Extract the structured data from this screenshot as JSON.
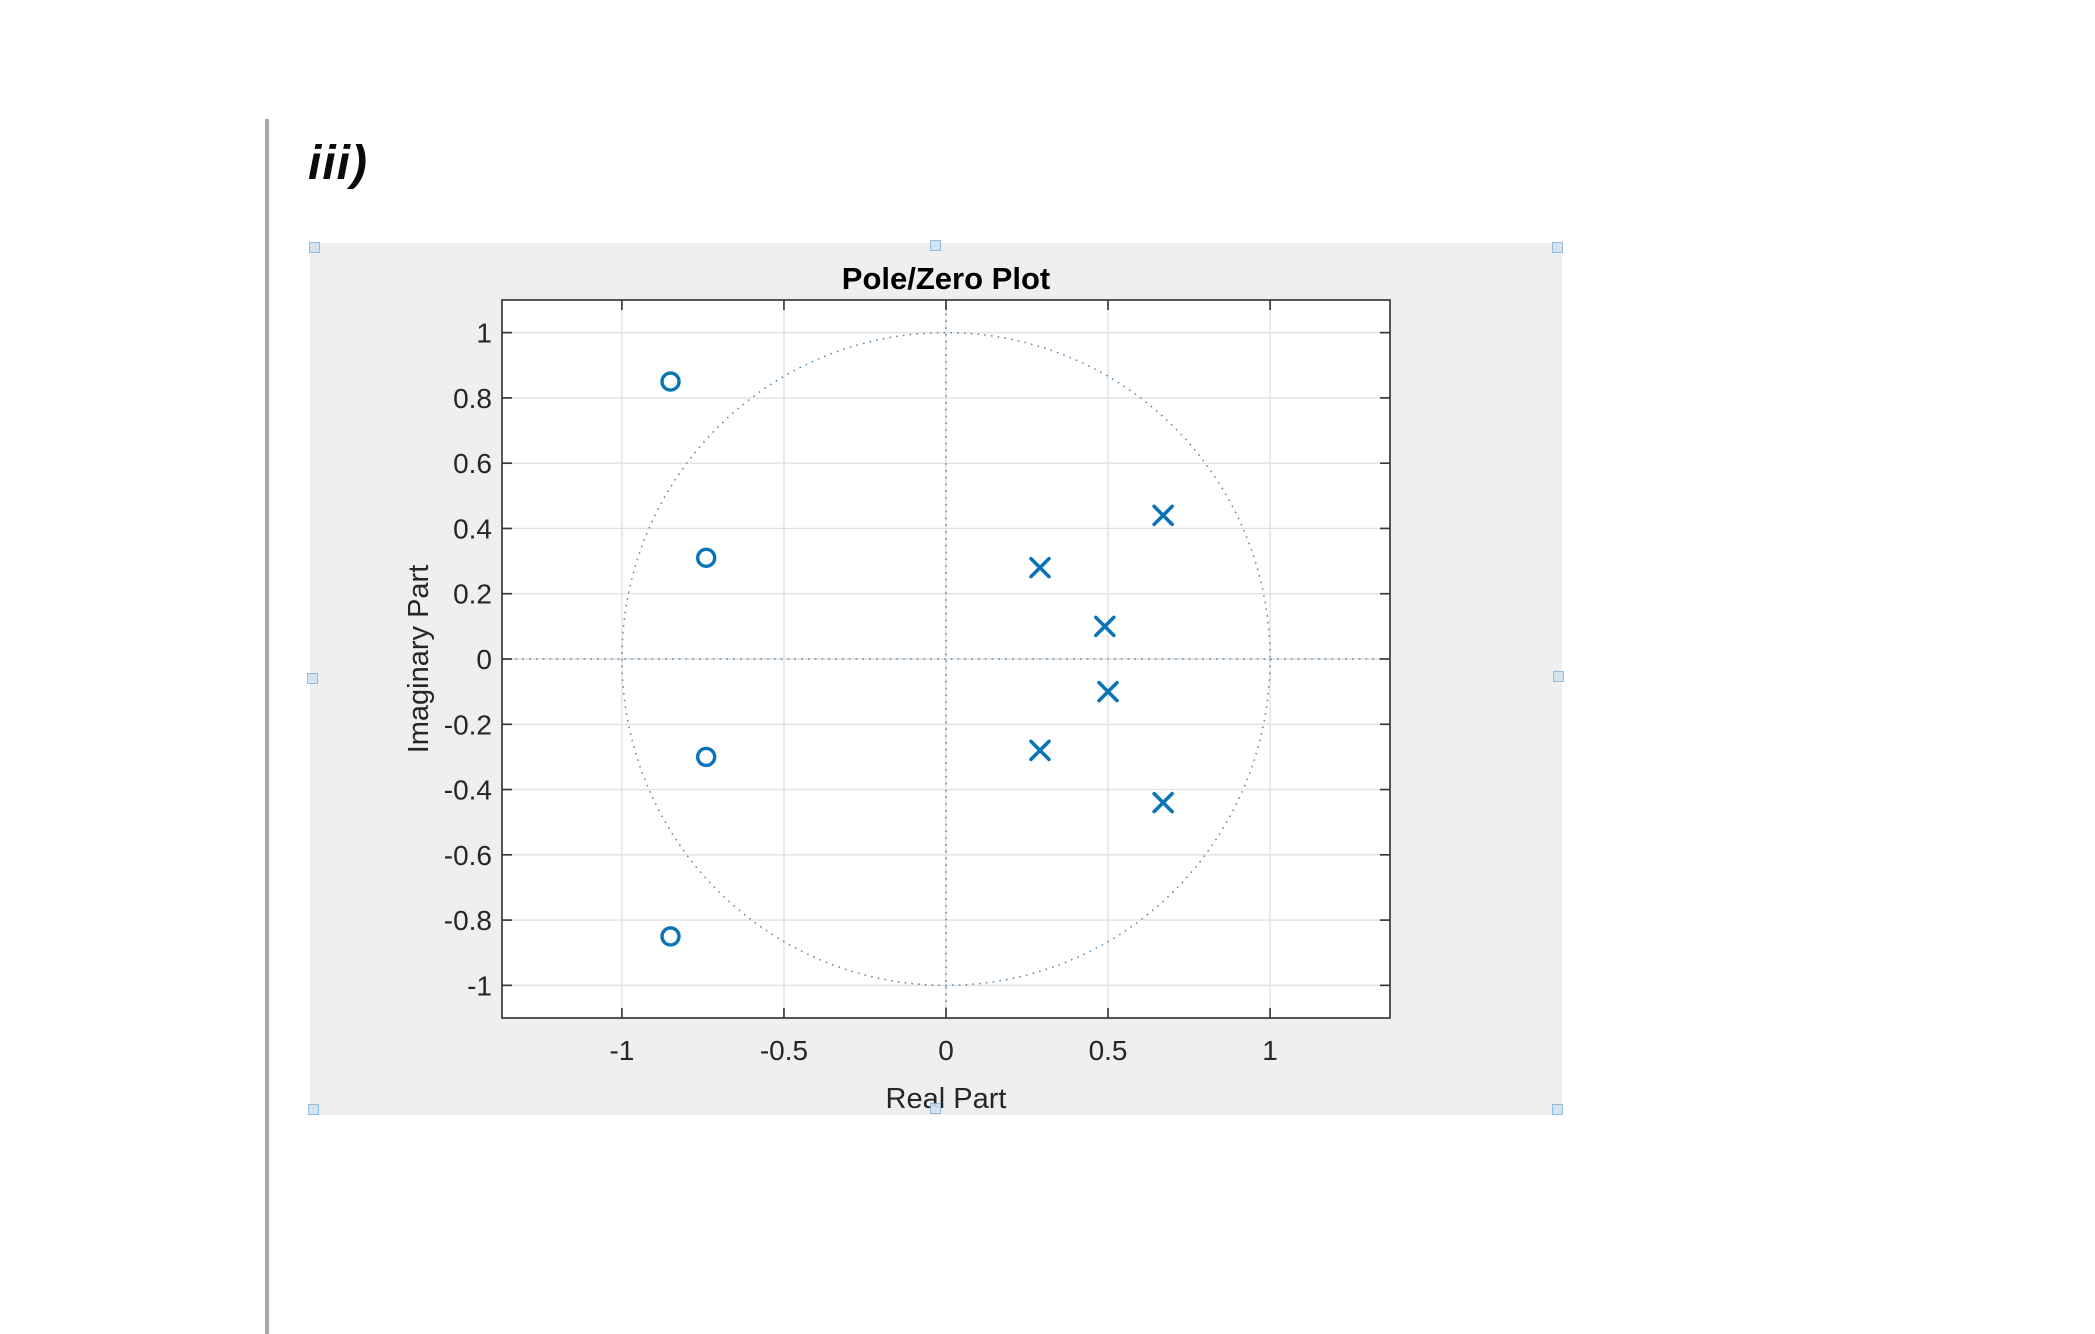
{
  "page": {
    "section_label": "iii)"
  },
  "chart_data": {
    "type": "scatter",
    "title": "Pole/Zero Plot",
    "xlabel": "Real Part",
    "ylabel": "Imaginary Part",
    "xlim": [
      -1.37,
      1.37
    ],
    "ylim": [
      -1.1,
      1.1
    ],
    "grid": true,
    "unit_circle": true,
    "x_ticks": [
      -1,
      -0.5,
      0,
      0.5,
      1
    ],
    "x_tick_labels": [
      "-1",
      "-0.5",
      "0",
      "0.5",
      "1"
    ],
    "y_ticks": [
      1,
      0.8,
      0.6,
      0.4,
      0.2,
      0,
      -0.2,
      -0.4,
      -0.6,
      -0.8,
      -1
    ],
    "y_tick_labels": [
      "1",
      "0.8",
      "0.6",
      "0.4",
      "0.2",
      "0",
      "-0.2",
      "-0.4",
      "-0.6",
      "-0.8",
      "-1"
    ],
    "series": [
      {
        "name": "zeros",
        "marker": "o",
        "points": [
          {
            "re": -0.85,
            "im": 0.85
          },
          {
            "re": -0.74,
            "im": 0.31
          },
          {
            "re": -0.74,
            "im": -0.3
          },
          {
            "re": -0.85,
            "im": -0.85
          }
        ]
      },
      {
        "name": "poles",
        "marker": "x",
        "points": [
          {
            "re": 0.67,
            "im": 0.44
          },
          {
            "re": 0.29,
            "im": 0.28
          },
          {
            "re": 0.49,
            "im": 0.1
          },
          {
            "re": 0.5,
            "im": -0.1
          },
          {
            "re": 0.29,
            "im": -0.28
          },
          {
            "re": 0.67,
            "im": -0.44
          }
        ]
      }
    ],
    "colors": {
      "marker": "#0b73b7",
      "grid": "#e1e1e1",
      "dotted_reference": "#5e88ab",
      "axis_box": "#3a3a3a",
      "text": "#262626",
      "figure_bg": "#efeff0",
      "plot_bg": "#ffffff"
    }
  }
}
